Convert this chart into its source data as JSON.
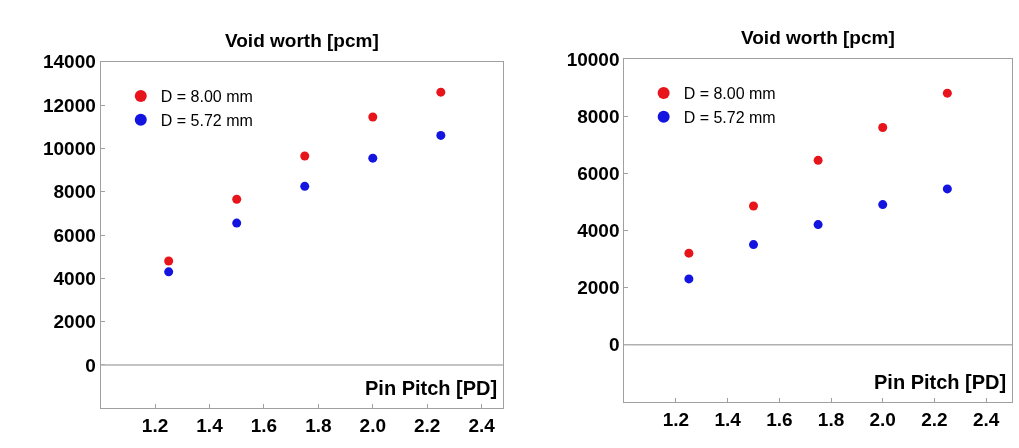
{
  "chart_data": [
    {
      "type": "scatter",
      "title": "Void worth [pcm]",
      "xlabel": "Pin Pitch [PD]",
      "marker": "circle",
      "legend": "top left",
      "xlim": [
        1.0,
        2.48
      ],
      "xticks": [
        1.2,
        1.4,
        1.6,
        1.8,
        {
          "value": 2.0,
          "label": "2.0"
        },
        2.2,
        2.4
      ],
      "ylim": [
        -2000,
        14000
      ],
      "yticks": [
        0,
        2000,
        4000,
        6000,
        8000,
        10000,
        12000,
        14000
      ],
      "ref_lines": [
        {
          "axis": "y",
          "value": 0,
          "color": "#b0b0b0"
        }
      ],
      "x": [
        1.25,
        1.5,
        1.75,
        2.0,
        2.25
      ],
      "series": [
        {
          "name": "D = 8.00 mm",
          "color": "#e8141b",
          "values": [
            4800,
            7650,
            9650,
            11450,
            12600
          ]
        },
        {
          "name": "D = 5.72 mm",
          "color": "#1414e0",
          "values": [
            4300,
            6550,
            8250,
            9550,
            10600
          ]
        }
      ]
    },
    {
      "type": "scatter",
      "title": "Void worth [pcm]",
      "xlabel": "Pin Pitch [PD]",
      "marker": "circle",
      "legend": "top left",
      "xlim": [
        1.0,
        2.5
      ],
      "xticks": [
        1.2,
        1.4,
        1.6,
        1.8,
        {
          "value": 2.0,
          "label": "2.0"
        },
        2.2,
        2.4
      ],
      "ylim": [
        -2000,
        10000
      ],
      "yticks": [
        0,
        2000,
        4000,
        6000,
        8000,
        10000
      ],
      "ref_lines": [
        {
          "axis": "y",
          "value": 0,
          "color": "#b0b0b0"
        }
      ],
      "x": [
        1.25,
        1.5,
        1.75,
        2.0,
        2.25
      ],
      "series": [
        {
          "name": "D = 8.00 mm",
          "color": "#e8141b",
          "values": [
            3200,
            4850,
            6450,
            7600,
            8800
          ]
        },
        {
          "name": "D = 5.72 mm",
          "color": "#1414e0",
          "values": [
            2300,
            3500,
            4200,
            4900,
            5450
          ]
        }
      ]
    }
  ]
}
